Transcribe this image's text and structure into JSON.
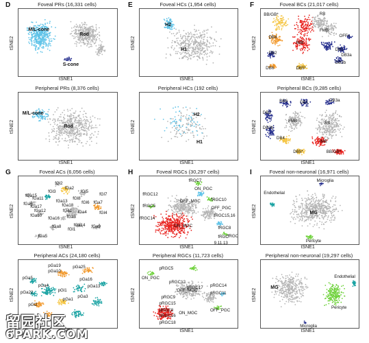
{
  "panels": [
    {
      "id": "D1",
      "letter": "D",
      "title": "Foveal PRs (16,331 cells)",
      "xlabel": "tSNE1",
      "ylabel": "tSNE2",
      "labels": [
        {
          "t": "M/L-cone",
          "big": true
        },
        {
          "t": "Rod",
          "big": true
        },
        {
          "t": "S-cone",
          "big": true
        }
      ]
    },
    {
      "id": "D2",
      "letter": "",
      "title": "Peripheral PRs (8,376 cells)",
      "xlabel": "tSNE1",
      "ylabel": "tSNE2",
      "labels": [
        {
          "t": "M/L-cone",
          "big": true
        },
        {
          "t": "Rod",
          "big": true
        }
      ]
    },
    {
      "id": "E1",
      "letter": "E",
      "title": "Foveal HCs (1,954 cells)",
      "xlabel": "tSNE1",
      "ylabel": "tSNE2",
      "labels": [
        {
          "t": "H2",
          "big": true
        },
        {
          "t": "H1",
          "big": true
        }
      ]
    },
    {
      "id": "E2",
      "letter": "",
      "title": "Peripheral HCs (192 cells)",
      "xlabel": "tSNE1",
      "ylabel": "tSNE2",
      "labels": [
        {
          "t": "H2",
          "big": true
        },
        {
          "t": "H1",
          "big": true
        }
      ]
    },
    {
      "id": "F1",
      "letter": "F",
      "title": "Foveal BCs (21,017 cells)",
      "xlabel": "tSNE1",
      "ylabel": "tSNE2",
      "labels": [
        {
          "t": "BB/GB*"
        },
        {
          "t": "RB"
        },
        {
          "t": "FMB"
        },
        {
          "t": "OFFx"
        },
        {
          "t": "DB4"
        },
        {
          "t": "IMB"
        },
        {
          "t": "DB1"
        },
        {
          "t": "DB2"
        },
        {
          "t": "DB3a"
        },
        {
          "t": "DB3b"
        },
        {
          "t": "DB5*"
        },
        {
          "t": "DB6"
        }
      ]
    },
    {
      "id": "F2",
      "letter": "",
      "title": "Peripheral BCs (9,285 cells)",
      "xlabel": "tSNE1",
      "ylabel": "tSNE2",
      "labels": [
        {
          "t": "DB6"
        },
        {
          "t": "DB1"
        },
        {
          "t": "DB3a"
        },
        {
          "t": "DB2"
        },
        {
          "t": "FMB"
        },
        {
          "t": "RB"
        },
        {
          "t": "DB3b"
        },
        {
          "t": "DB4"
        },
        {
          "t": "IMB"
        },
        {
          "t": "DB5*"
        },
        {
          "t": "BB/GB*"
        }
      ]
    },
    {
      "id": "G1",
      "letter": "G",
      "title": "Foveal ACs (6,056 cells)",
      "xlabel": "tSNE1",
      "ylabel": "tSNE2",
      "labels": [
        {
          "t": "fGa2"
        },
        {
          "t": "fGa15"
        },
        {
          "t": "fGa11"
        },
        {
          "t": "fGa6"
        },
        {
          "t": "fGa17"
        },
        {
          "t": "fGa13"
        },
        {
          "t": "fGa1"
        },
        {
          "t": "fGa4"
        },
        {
          "t": "fGa3"
        },
        {
          "t": "fGa5"
        },
        {
          "t": "fGa7"
        },
        {
          "t": "fGa9"
        },
        {
          "t": "fGa8"
        },
        {
          "t": "fGa10"
        },
        {
          "t": "fGa12"
        },
        {
          "t": "fGa14"
        },
        {
          "t": "fGa16"
        },
        {
          "t": "fGa18"
        },
        {
          "t": "fGl1"
        },
        {
          "t": "fGl2"
        },
        {
          "t": "fGl3"
        },
        {
          "t": "fGl4"
        },
        {
          "t": "fGl5"
        },
        {
          "t": "fGl6"
        },
        {
          "t": "fGl7"
        },
        {
          "t": "fGl8"
        }
      ]
    },
    {
      "id": "G2",
      "letter": "",
      "title": "Peripheral ACs (24,180 cells)",
      "xlabel": "tSNE1",
      "ylabel": "tSNE2",
      "labels": [
        {
          "t": "pGa19"
        },
        {
          "t": "pGa25"
        },
        {
          "t": "pGa10"
        },
        {
          "t": "pGa5"
        },
        {
          "t": "pGa16"
        },
        {
          "t": "pGa4"
        },
        {
          "t": "pGl1"
        },
        {
          "t": "pGa13"
        },
        {
          "t": "pGa22"
        },
        {
          "t": "pGa3"
        },
        {
          "t": "pGa1"
        },
        {
          "t": "pGl2"
        }
      ]
    },
    {
      "id": "H1",
      "letter": "H",
      "title": "Foveal RGCs (30,297 cells)",
      "xlabel": "tSNE1",
      "ylabel": "tSNE2",
      "labels": [
        {
          "t": "fRGC7"
        },
        {
          "t": "ON_PGC"
        },
        {
          "t": "fRGC12"
        },
        {
          "t": "OFF_MGC"
        },
        {
          "t": "fRGC10"
        },
        {
          "t": "fRGC5"
        },
        {
          "t": "OFF_PGC"
        },
        {
          "t": "fRGC15,16"
        },
        {
          "t": "fRGC14"
        },
        {
          "t": "ON_MGC"
        },
        {
          "t": "fRGC8"
        },
        {
          "t": "fRGC6"
        },
        {
          "t": "fRGC"
        },
        {
          "t": "9,11,13"
        }
      ]
    },
    {
      "id": "H2",
      "letter": "",
      "title": "Peripheral RGCs (11,723 cells)",
      "xlabel": "tSNE1",
      "ylabel": "tSNE2",
      "labels": [
        {
          "t": "pRGC5"
        },
        {
          "t": "ON_PGC"
        },
        {
          "t": "pRGC12"
        },
        {
          "t": "OFF_MGC"
        },
        {
          "t": "pRGC17"
        },
        {
          "t": "pRGC14"
        },
        {
          "t": "pRGC9"
        },
        {
          "t": "pRGC15"
        },
        {
          "t": "pRGC8"
        },
        {
          "t": "pRGC11"
        },
        {
          "t": "pRGC16"
        },
        {
          "t": "ON_MGC"
        },
        {
          "t": "OFF_PGC"
        },
        {
          "t": "pRGC18"
        }
      ]
    },
    {
      "id": "I1",
      "letter": "I",
      "title": "Foveal non-neuronal (16,971 cells)",
      "xlabel": "tSNE1",
      "ylabel": "tSNE2",
      "labels": [
        {
          "t": "Microglia"
        },
        {
          "t": "Endothelial"
        },
        {
          "t": "MG",
          "big": true
        },
        {
          "t": "Pericyte"
        }
      ]
    },
    {
      "id": "I2",
      "letter": "",
      "title": "Peripheral non-neuronal (19,297 cells)",
      "xlabel": "tSNE1",
      "ylabel": "tSNE2",
      "labels": [
        {
          "t": "Endothelial"
        },
        {
          "t": "MG",
          "big": true
        },
        {
          "t": "Pericyte"
        },
        {
          "t": "Microglia"
        }
      ]
    }
  ],
  "watermark": {
    "line1": "留园社区",
    "line2": "6PARK.COM"
  },
  "colors": {
    "gray": "#b5b5b5",
    "lightblue": "#5fc3e8",
    "red": "#e8231f",
    "green": "#6fd23c",
    "orange": "#f29a2e",
    "yellow": "#f5c542",
    "navy": "#28318f",
    "teal": "#1aa3a3",
    "purple": "#7c5fb0"
  }
}
